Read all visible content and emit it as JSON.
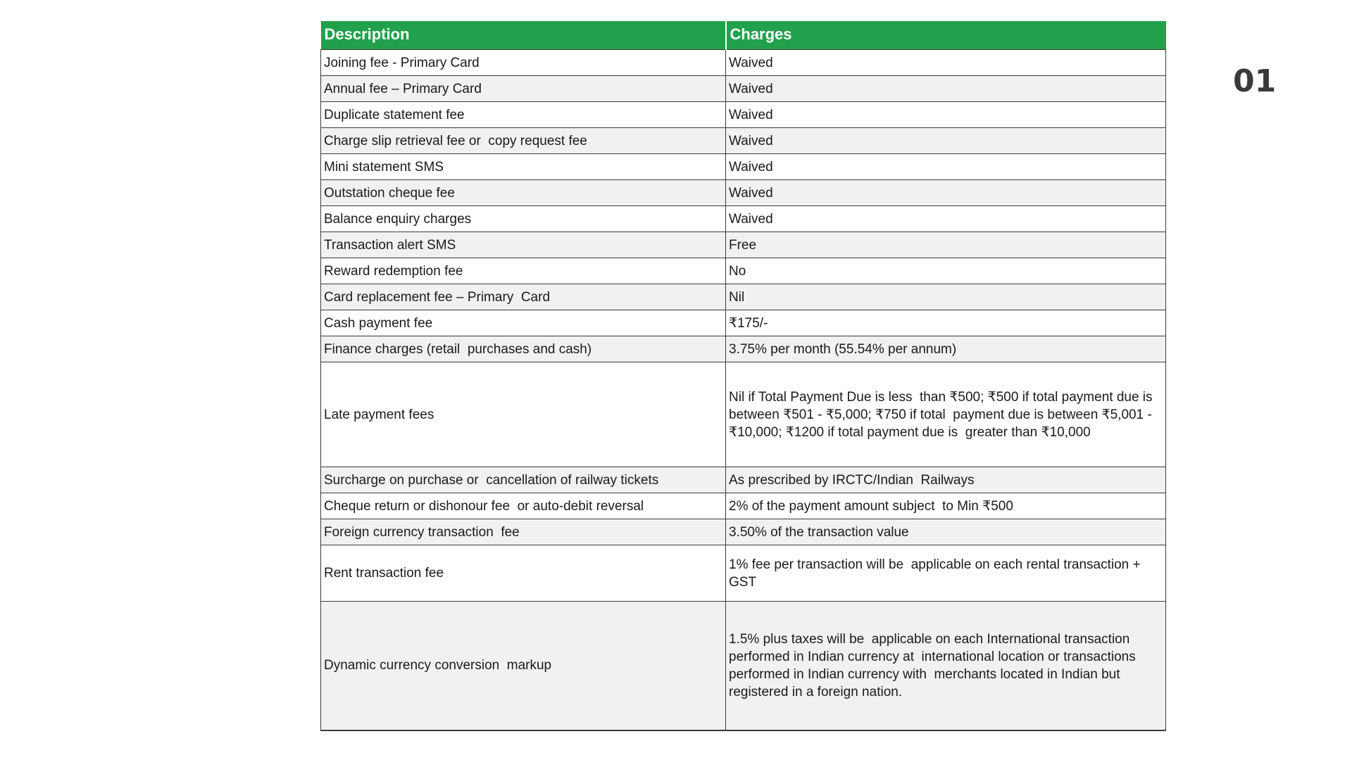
{
  "page": {
    "number": "01"
  },
  "colors": {
    "header_bg": "#21A14C",
    "header_text": "#FFFFFF",
    "row_alt_bg": "#F1F1F1",
    "border": "#3A3A3A",
    "page_number_text": "#3A3A3A"
  },
  "table": {
    "columns": [
      "Description",
      "Charges"
    ],
    "rows": [
      {
        "description": "Joining fee - Primary Card",
        "charges": "Waived"
      },
      {
        "description": "Annual fee – Primary Card",
        "charges": "Waived"
      },
      {
        "description": "Duplicate statement fee",
        "charges": "Waived"
      },
      {
        "description": "Charge slip retrieval fee or  copy request fee",
        "charges": "Waived"
      },
      {
        "description": "Mini statement SMS",
        "charges": "Waived"
      },
      {
        "description": "Outstation cheque fee",
        "charges": "Waived"
      },
      {
        "description": "Balance enquiry charges",
        "charges": "Waived"
      },
      {
        "description": "Transaction alert SMS",
        "charges": "Free"
      },
      {
        "description": "Reward redemption fee",
        "charges": "No"
      },
      {
        "description": "Card replacement fee – Primary  Card",
        "charges": "Nil"
      },
      {
        "description": "Cash payment fee",
        "charges": "₹175/-"
      },
      {
        "description": "Finance charges (retail  purchases and cash)",
        "charges": "3.75% per month (55.54% per annum)"
      },
      {
        "description": "Late payment fees",
        "charges": "Nil if Total Payment Due is less  than ₹500; ₹500 if total payment due is between ₹501 - ₹5,000; ₹750 if total  payment due is between ₹5,001 - ₹10,000; ₹1200 if total payment due is  greater than ₹10,000"
      },
      {
        "description": "Surcharge on purchase or  cancellation of railway tickets",
        "charges": "As prescribed by IRCTC/Indian  Railways"
      },
      {
        "description": "Cheque return or dishonour fee  or auto-debit reversal",
        "charges": "2% of the payment amount subject  to Min ₹500"
      },
      {
        "description": "Foreign currency transaction  fee",
        "charges": "3.50% of the transaction value"
      },
      {
        "description": "Rent transaction fee",
        "charges": "1% fee per transaction will be  applicable on each rental transaction + GST"
      },
      {
        "description": "Dynamic currency conversion  markup",
        "charges": "1.5% plus taxes will be  applicable on each International transaction performed in Indian currency at  international location or transactions performed in Indian currency with  merchants located in Indian but registered in a foreign nation."
      }
    ]
  }
}
